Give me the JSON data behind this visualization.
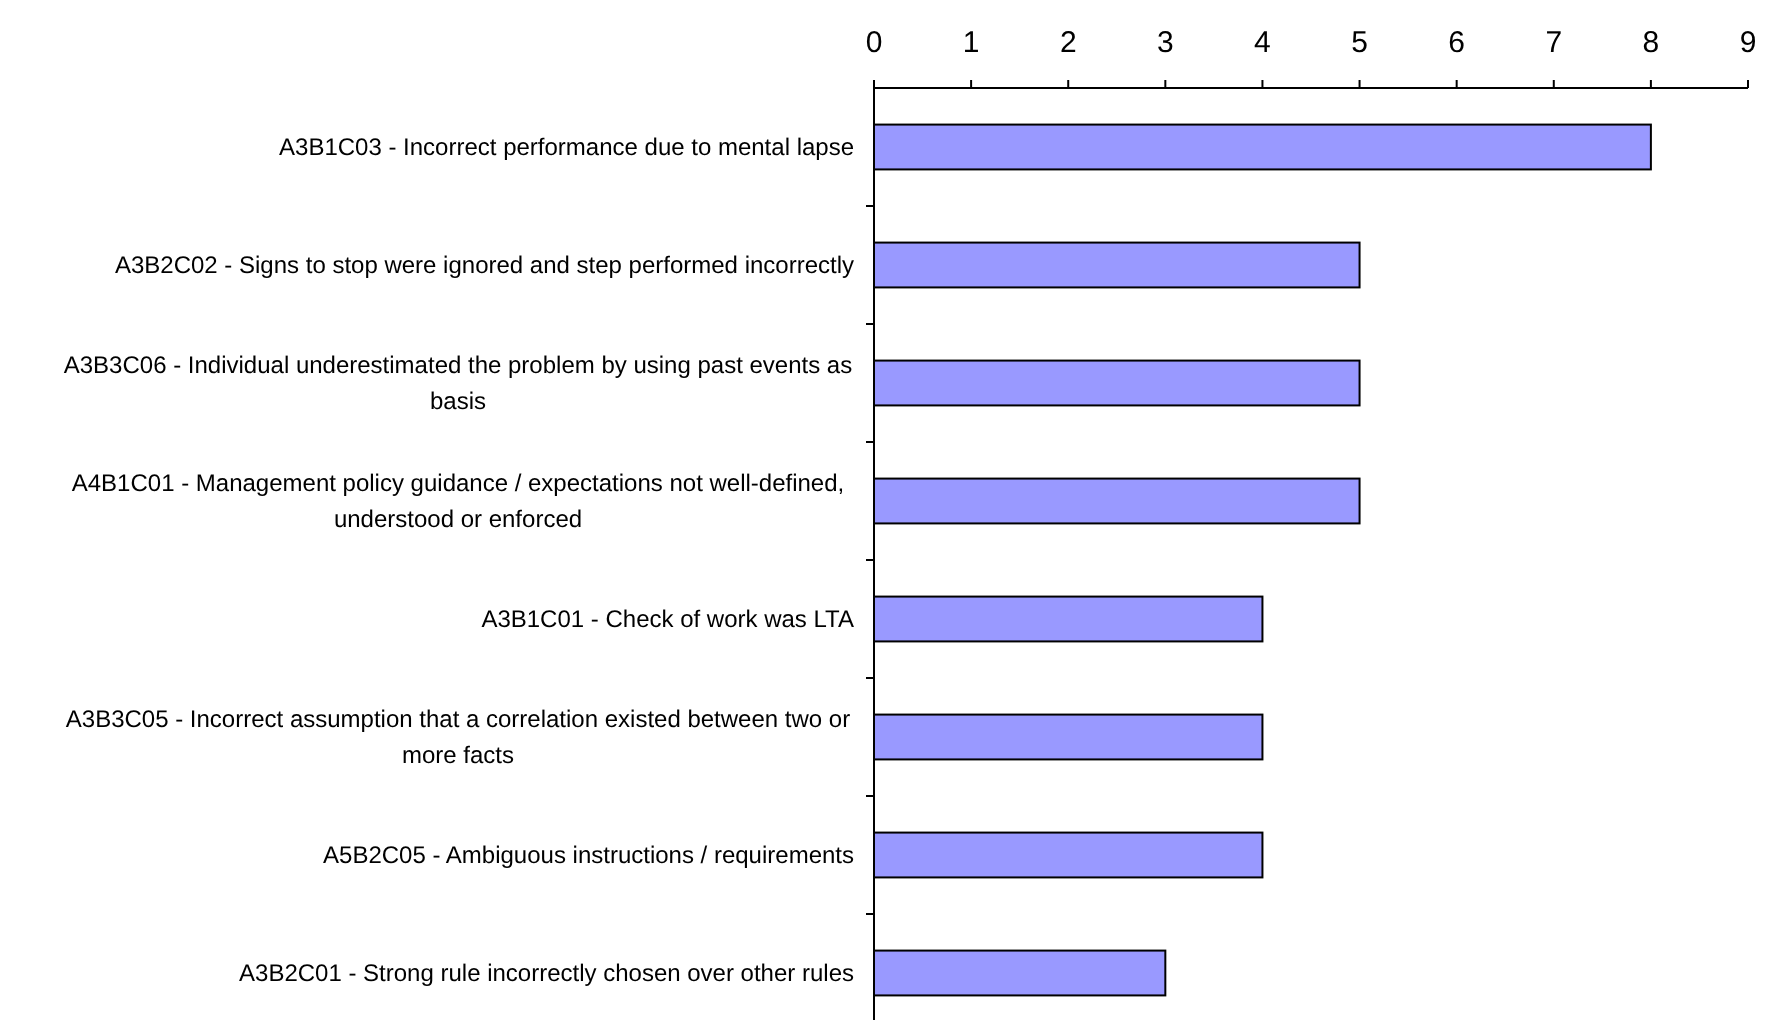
{
  "chart_data": {
    "type": "bar",
    "orientation": "horizontal",
    "categories": [
      "A3B1C03 - Incorrect performance due to mental lapse",
      "A3B2C02 - Signs to stop were ignored and step performed incorrectly",
      "A3B3C06 - Individual underestimated the problem by using past events as basis",
      "A4B1C01 - Management policy guidance / expectations not well-defined, understood or enforced",
      "A3B1C01 - Check of work was LTA",
      "A3B3C05 - Incorrect assumption that a correlation existed between two or more facts",
      "A5B2C05 - Ambiguous instructions / requirements",
      "A3B2C01 - Strong rule incorrectly chosen over other rules"
    ],
    "values": [
      8,
      5,
      5,
      5,
      4,
      4,
      4,
      3
    ],
    "color": "#9999ff",
    "xlim": [
      0,
      9
    ],
    "xticks": [
      0,
      1,
      2,
      3,
      4,
      5,
      6,
      7,
      8,
      9
    ]
  }
}
